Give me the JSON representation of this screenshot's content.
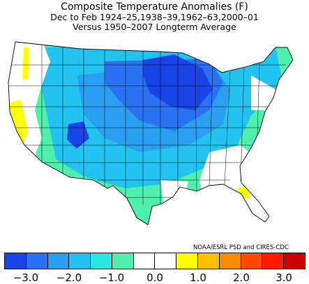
{
  "title": "Composite Temperature Anomalies (F)",
  "subtitle1": "Dec to Feb  1924–25,1938–39,1962–63,2000–01",
  "subtitle2": "Versus 1950–2007 Longterm Average",
  "credit": "NOAA/ESRL PSD and CIRES-CDC",
  "legend": {
    "colors": [
      "#1844e8",
      "#2a72f2",
      "#2a9ff2",
      "#22c4ef",
      "#28e6e2",
      "#4ef0ab",
      "#ffffff",
      "#ffffff",
      "#ffff00",
      "#ffc000",
      "#ff8c00",
      "#ff4a00",
      "#ff1a00",
      "#c80000"
    ],
    "tick_labels": [
      "−3.0",
      "−2.0",
      "−1.0",
      "0.0",
      "1.0",
      "2.0",
      "3.0"
    ]
  },
  "map_regions": {
    "cold_core_upper_midwest": "#1844e8",
    "cold_northern_plains": "#2a72f2",
    "cold_central_plains": "#2a9ff2",
    "cold_broad": "#22c4ef",
    "cool_edges": "#28e6e2",
    "slight_cool": "#4ef0ab",
    "neutral": "#ffffff",
    "warm_pockets": "#ffff00"
  }
}
